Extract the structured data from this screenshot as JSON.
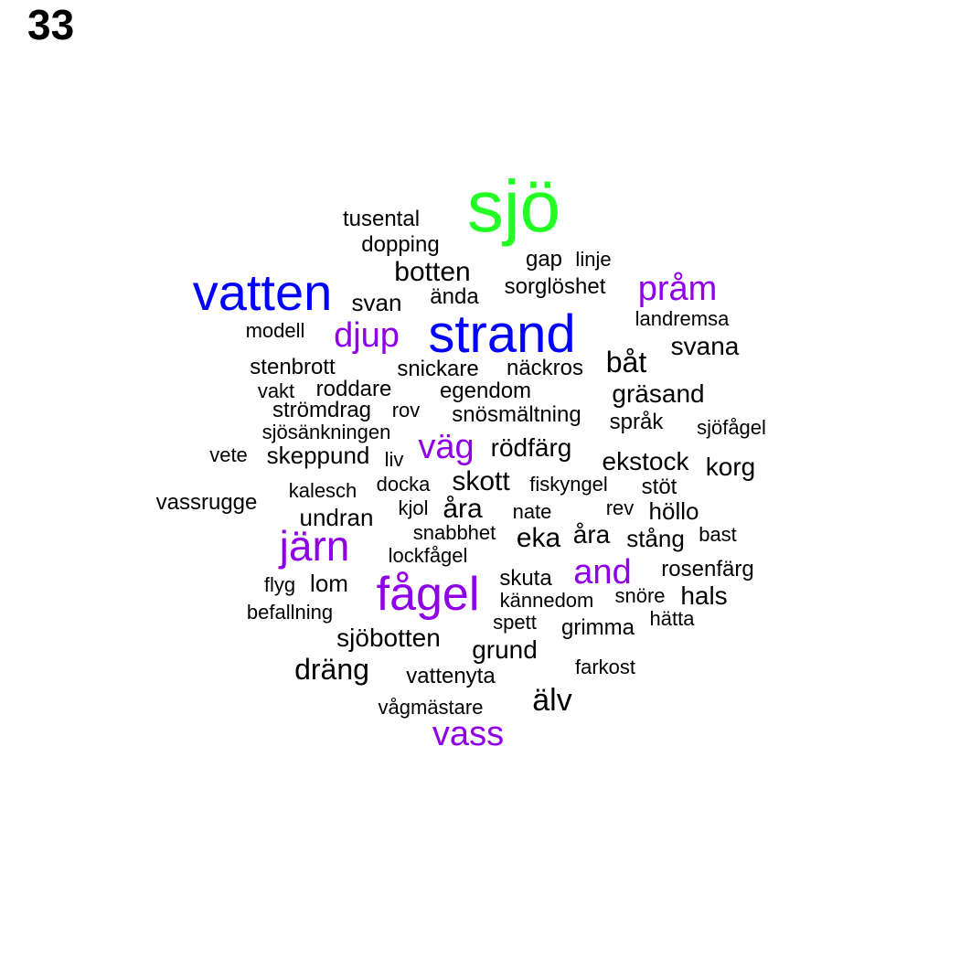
{
  "figure_number": "33",
  "colors": {
    "green": "#22ff22",
    "blue": "#0000ff",
    "purple": "#8f00e6",
    "black": "#000000"
  },
  "words": [
    {
      "text": "sjö",
      "color": "green"
    },
    {
      "text": "vatten",
      "color": "blue"
    },
    {
      "text": "strand",
      "color": "blue"
    },
    {
      "text": "pråm",
      "color": "purple"
    },
    {
      "text": "djup",
      "color": "purple"
    },
    {
      "text": "väg",
      "color": "purple"
    },
    {
      "text": "järn",
      "color": "purple"
    },
    {
      "text": "fågel",
      "color": "purple"
    },
    {
      "text": "and",
      "color": "purple"
    },
    {
      "text": "vass",
      "color": "purple"
    },
    {
      "text": "tusental",
      "color": "black"
    },
    {
      "text": "dopping",
      "color": "black"
    },
    {
      "text": "gap",
      "color": "black"
    },
    {
      "text": "linje",
      "color": "black"
    },
    {
      "text": "botten",
      "color": "black"
    },
    {
      "text": "sorglöshet",
      "color": "black"
    },
    {
      "text": "ända",
      "color": "black"
    },
    {
      "text": "svan",
      "color": "black"
    },
    {
      "text": "landremsa",
      "color": "black"
    },
    {
      "text": "modell",
      "color": "black"
    },
    {
      "text": "svana",
      "color": "black"
    },
    {
      "text": "båt",
      "color": "black"
    },
    {
      "text": "stenbrott",
      "color": "black"
    },
    {
      "text": "snickare",
      "color": "black"
    },
    {
      "text": "näckros",
      "color": "black"
    },
    {
      "text": "vakt",
      "color": "black"
    },
    {
      "text": "roddare",
      "color": "black"
    },
    {
      "text": "egendom",
      "color": "black"
    },
    {
      "text": "gräsand",
      "color": "black"
    },
    {
      "text": "strömdrag",
      "color": "black"
    },
    {
      "text": "rov",
      "color": "black"
    },
    {
      "text": "snösmältning",
      "color": "black"
    },
    {
      "text": "språk",
      "color": "black"
    },
    {
      "text": "sjöfågel",
      "color": "black"
    },
    {
      "text": "sjösänkningen",
      "color": "black"
    },
    {
      "text": "vete",
      "color": "black"
    },
    {
      "text": "skeppund",
      "color": "black"
    },
    {
      "text": "liv",
      "color": "black"
    },
    {
      "text": "rödfärg",
      "color": "black"
    },
    {
      "text": "ekstock",
      "color": "black"
    },
    {
      "text": "korg",
      "color": "black"
    },
    {
      "text": "kalesch",
      "color": "black"
    },
    {
      "text": "docka",
      "color": "black"
    },
    {
      "text": "skott",
      "color": "black"
    },
    {
      "text": "fiskyngel",
      "color": "black"
    },
    {
      "text": "stöt",
      "color": "black"
    },
    {
      "text": "vassrugge",
      "color": "black"
    },
    {
      "text": "kjol",
      "color": "black"
    },
    {
      "text": "åra",
      "color": "black"
    },
    {
      "text": "nate",
      "color": "black"
    },
    {
      "text": "rev",
      "color": "black"
    },
    {
      "text": "höllo",
      "color": "black"
    },
    {
      "text": "undran",
      "color": "black"
    },
    {
      "text": "snabbhet",
      "color": "black"
    },
    {
      "text": "eka",
      "color": "black"
    },
    {
      "text": "åra",
      "color": "black"
    },
    {
      "text": "stång",
      "color": "black"
    },
    {
      "text": "bast",
      "color": "black"
    },
    {
      "text": "lockfågel",
      "color": "black"
    },
    {
      "text": "rosenfärg",
      "color": "black"
    },
    {
      "text": "flyg",
      "color": "black"
    },
    {
      "text": "lom",
      "color": "black"
    },
    {
      "text": "skuta",
      "color": "black"
    },
    {
      "text": "kännedom",
      "color": "black"
    },
    {
      "text": "snöre",
      "color": "black"
    },
    {
      "text": "hals",
      "color": "black"
    },
    {
      "text": "befallning",
      "color": "black"
    },
    {
      "text": "spett",
      "color": "black"
    },
    {
      "text": "grimma",
      "color": "black"
    },
    {
      "text": "hätta",
      "color": "black"
    },
    {
      "text": "sjöbotten",
      "color": "black"
    },
    {
      "text": "grund",
      "color": "black"
    },
    {
      "text": "dräng",
      "color": "black"
    },
    {
      "text": "vattenyta",
      "color": "black"
    },
    {
      "text": "farkost",
      "color": "black"
    },
    {
      "text": "älv",
      "color": "black"
    },
    {
      "text": "vågmästare",
      "color": "black"
    }
  ]
}
